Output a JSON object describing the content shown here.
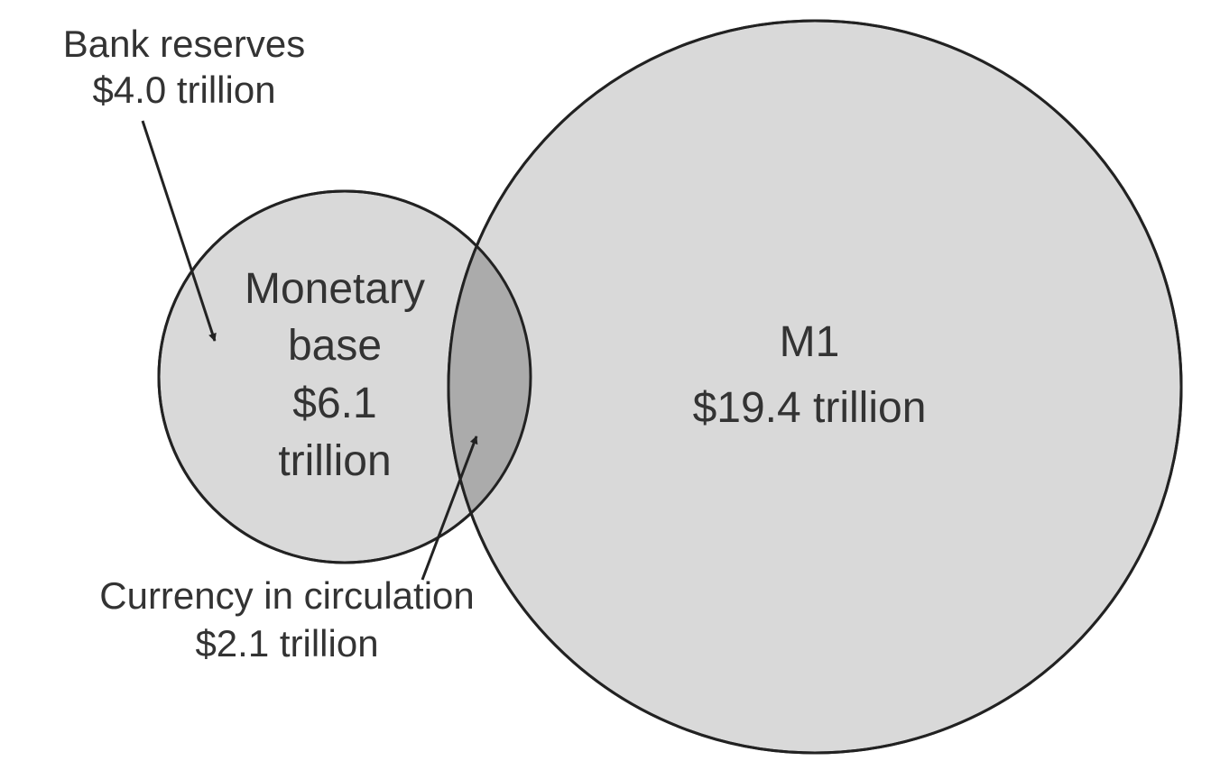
{
  "labels": {
    "bank_reserves": {
      "title": "Bank reserves",
      "value": "$4.0 trillion"
    },
    "monetary_base": {
      "line1": "Monetary",
      "line2": "base",
      "line3": "$6.1",
      "line4": "trillion"
    },
    "m1": {
      "title": "M1",
      "value": "$19.4 trillion"
    },
    "currency": {
      "title": "Currency in circulation",
      "value": "$2.1 trillion"
    }
  },
  "colors": {
    "circle_fill": "#d9d9d9",
    "overlap_fill": "#ababab",
    "stroke": "#222222",
    "text": "#333333"
  }
}
